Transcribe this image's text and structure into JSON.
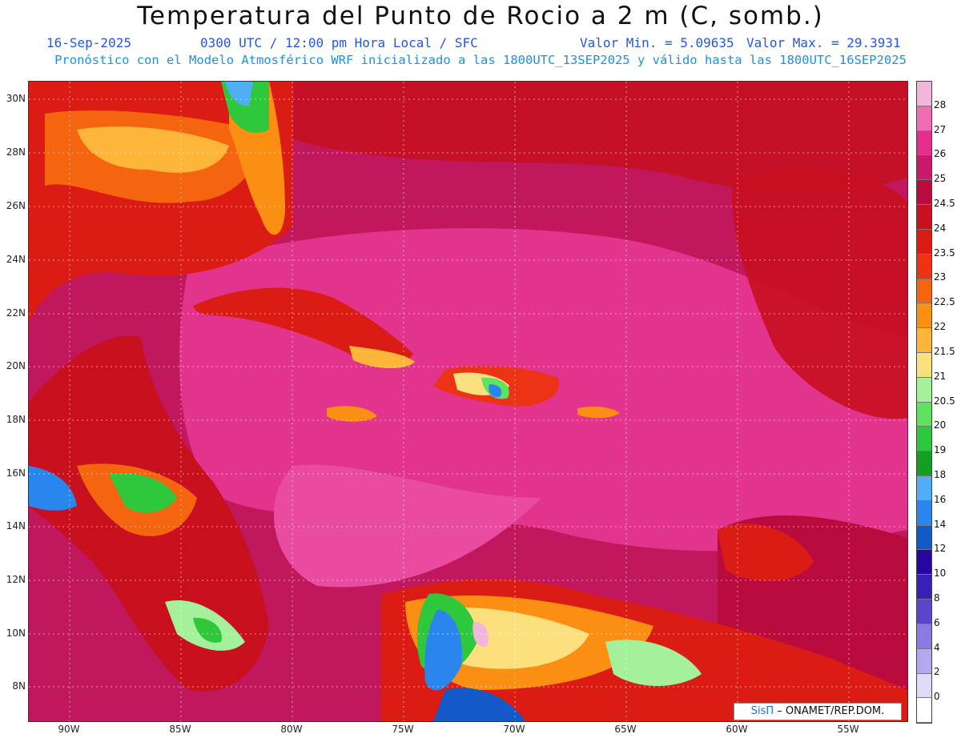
{
  "header": {
    "title": "Temperatura del Punto de Rocio a 2 m (C, somb.)",
    "date": "16-Sep-2025",
    "time": "0300 UTC / 12:00 pm Hora Local / SFC",
    "min_value": "Valor Min. = 5.09635",
    "max_value": "Valor Max. = 29.3931",
    "model_line": "Pronóstico con el Modelo Atmosférico WRF inicializado a las 1800UTC_13SEP2025 y válido hasta las  1800UTC_16SEP2025"
  },
  "map": {
    "lat_labels": [
      "30N",
      "28N",
      "26N",
      "24N",
      "22N",
      "20N",
      "18N",
      "16N",
      "14N",
      "12N",
      "10N",
      "8N"
    ],
    "lon_labels": [
      "90W",
      "85W",
      "80W",
      "75W",
      "70W",
      "65W",
      "60W",
      "55W"
    ],
    "ocean_color": "#c0175d"
  },
  "credit": {
    "brand": "SisΠ",
    "text": "– ONAMET/REP.DOM."
  },
  "colorbar": {
    "labels": [
      "28",
      "27",
      "26",
      "25",
      "24.5",
      "24",
      "23.5",
      "23",
      "22.5",
      "22",
      "21.5",
      "21",
      "20.5",
      "20",
      "19",
      "18",
      "16",
      "14",
      "12",
      "10",
      "8",
      "6",
      "4",
      "2",
      "0"
    ],
    "colors": [
      "#f2b6d8",
      "#f06cb4",
      "#e62f8c",
      "#c91968",
      "#b90b3e",
      "#c8101f",
      "#da1c14",
      "#ec3316",
      "#f5650f",
      "#fb8f14",
      "#fdb63a",
      "#fde07e",
      "#a5f09a",
      "#5ee25f",
      "#2fc83c",
      "#149f22",
      "#50aef4",
      "#2a86ec",
      "#1459c8",
      "#2806a0",
      "#3a1fb6",
      "#5a46cc",
      "#8a7ae2",
      "#b4a8f0",
      "#dcdcf8",
      "#ffffff"
    ]
  }
}
